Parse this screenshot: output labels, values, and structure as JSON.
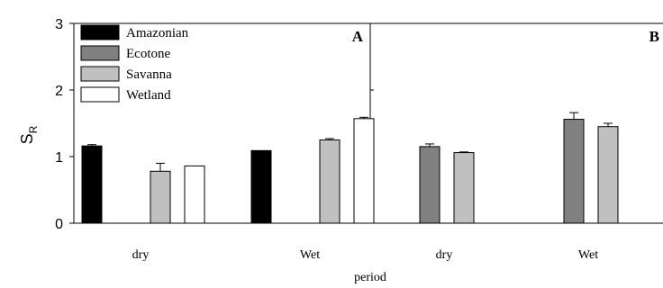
{
  "chart_data": {
    "type": "bar",
    "ylabel_main": "S",
    "ylabel_sub": "R",
    "xlabel": "period",
    "ylim": [
      0,
      3
    ],
    "yticks": [
      "0",
      "1",
      "2",
      "3"
    ],
    "legend": {
      "position": "top-left",
      "entries": [
        {
          "name": "Amazonian",
          "color": "#000000"
        },
        {
          "name": "Ecotone",
          "color": "#808080"
        },
        {
          "name": "Savanna",
          "color": "#c0c0c0"
        },
        {
          "name": "Wetland",
          "color": "#ffffff"
        }
      ]
    },
    "panels": [
      {
        "label": "A",
        "categories": [
          "dry",
          "Wet"
        ],
        "series": [
          {
            "name": "Amazonian",
            "values": [
              1.16,
              1.09
            ],
            "errors": [
              0.02,
              0.0
            ]
          },
          {
            "name": "Ecotone",
            "values": [
              null,
              null
            ],
            "errors": [
              null,
              null
            ]
          },
          {
            "name": "Savanna",
            "values": [
              0.78,
              1.25
            ],
            "errors": [
              0.12,
              0.02
            ]
          },
          {
            "name": "Wetland",
            "values": [
              0.86,
              1.57
            ],
            "errors": [
              0.0,
              0.02
            ]
          }
        ]
      },
      {
        "label": "B",
        "categories": [
          "dry",
          "Wet"
        ],
        "series": [
          {
            "name": "Amazonian",
            "values": [
              null,
              null
            ],
            "errors": [
              null,
              null
            ]
          },
          {
            "name": "Ecotone",
            "values": [
              1.15,
              1.56
            ],
            "errors": [
              0.04,
              0.1
            ]
          },
          {
            "name": "Savanna",
            "values": [
              1.06,
              1.45
            ],
            "errors": [
              0.01,
              0.05
            ]
          },
          {
            "name": "Wetland",
            "values": [
              null,
              null
            ],
            "errors": [
              null,
              null
            ]
          }
        ]
      }
    ]
  }
}
